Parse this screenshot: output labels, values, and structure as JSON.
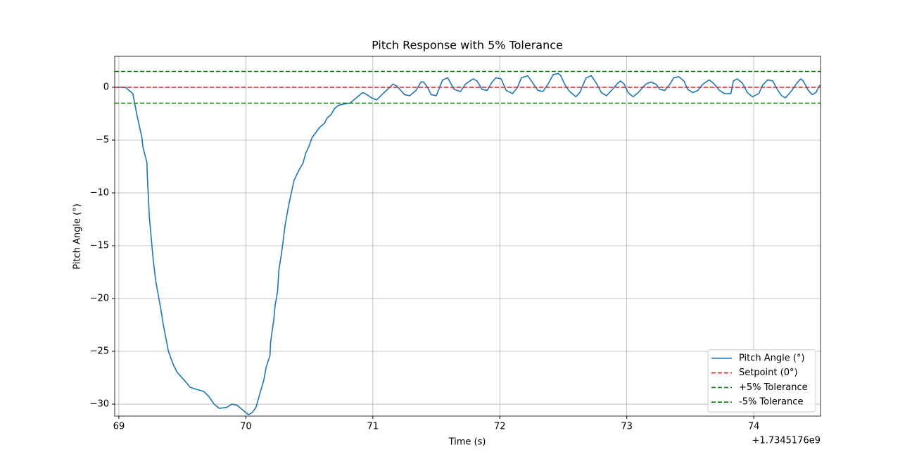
{
  "chart_data": {
    "type": "line",
    "title": "Pitch Response with 5% Tolerance",
    "xlabel": "Time (s)",
    "ylabel": "Pitch Angle (°)",
    "x_offset_label": "+1.7345176e9",
    "xlim": [
      68.967,
      74.526
    ],
    "ylim": [
      -31.13,
      2.93
    ],
    "xticks": [
      69,
      70,
      71,
      72,
      73,
      74
    ],
    "yticks": [
      {
        "value": -30,
        "label": "−30"
      },
      {
        "value": -25,
        "label": "−25"
      },
      {
        "value": -20,
        "label": "−20"
      },
      {
        "value": -15,
        "label": "−15"
      },
      {
        "value": -10,
        "label": "−10"
      },
      {
        "value": -5,
        "label": "−5"
      },
      0
    ],
    "grid": true,
    "legend": "lower right",
    "series": [
      {
        "name": "Pitch Angle (°)",
        "color": "#1f77b4",
        "style": "solid",
        "x": [
          68.98,
          69.05,
          69.11,
          69.14,
          69.18,
          69.19,
          69.22,
          69.225,
          69.24,
          69.27,
          69.29,
          69.33,
          69.35,
          69.39,
          69.43,
          69.46,
          69.52,
          69.56,
          69.61,
          69.67,
          69.71,
          69.75,
          69.79,
          69.85,
          69.89,
          69.93,
          69.98,
          70.02,
          70.05,
          70.08,
          70.11,
          70.14,
          70.16,
          70.19,
          70.195,
          70.22,
          70.23,
          70.25,
          70.26,
          70.28,
          70.31,
          70.34,
          70.38,
          70.42,
          70.45,
          70.47,
          70.5,
          70.52,
          70.55,
          70.58,
          70.62,
          70.64,
          70.67,
          70.7,
          70.73,
          70.77,
          70.82,
          70.86,
          70.92,
          70.94,
          70.99,
          71.03,
          71.08,
          71.16,
          71.19,
          71.25,
          71.29,
          71.34,
          71.38,
          71.4,
          71.43,
          71.46,
          71.5,
          71.55,
          71.59,
          71.64,
          71.69,
          71.73,
          71.79,
          71.82,
          71.86,
          71.9,
          71.94,
          71.97,
          72.01,
          72.05,
          72.1,
          72.14,
          72.17,
          72.22,
          72.26,
          72.3,
          72.34,
          72.38,
          72.42,
          72.46,
          72.48,
          72.51,
          72.55,
          72.6,
          72.63,
          72.68,
          72.72,
          72.76,
          72.8,
          72.84,
          72.88,
          72.93,
          72.95,
          72.98,
          73.01,
          73.05,
          73.09,
          73.15,
          73.19,
          73.23,
          73.26,
          73.3,
          73.34,
          73.37,
          73.41,
          73.45,
          73.48,
          73.52,
          73.56,
          73.6,
          73.65,
          73.69,
          73.73,
          73.77,
          73.82,
          73.84,
          73.87,
          73.91,
          73.95,
          73.99,
          74.04,
          74.07,
          74.11,
          74.15,
          74.19,
          74.22,
          74.25,
          74.3,
          74.34,
          74.37,
          74.39,
          74.43,
          74.46,
          74.49,
          74.52
        ],
        "values": [
          0,
          0,
          -0.6,
          -2.5,
          -4.7,
          -5.7,
          -7.1,
          -8.7,
          -12.3,
          -16.3,
          -18.3,
          -21,
          -22.5,
          -25,
          -26.3,
          -27,
          -27.8,
          -28.4,
          -28.6,
          -28.8,
          -29.3,
          -30,
          -30.4,
          -30.3,
          -30,
          -30.1,
          -30.6,
          -31,
          -30.8,
          -30.3,
          -29,
          -27.8,
          -26.5,
          -25.4,
          -24.1,
          -22,
          -20.7,
          -19.3,
          -17.3,
          -15.8,
          -13,
          -11,
          -8.8,
          -7.8,
          -7.2,
          -6.3,
          -5.5,
          -4.8,
          -4.3,
          -3.8,
          -3.4,
          -2.9,
          -2.6,
          -2,
          -1.7,
          -1.6,
          -1.5,
          -1.1,
          -0.5,
          -0.6,
          -1,
          -1.2,
          -0.6,
          0.3,
          0.1,
          -0.7,
          -0.8,
          -0.3,
          0.5,
          0.5,
          0,
          -0.7,
          -0.8,
          0.7,
          0.9,
          -0.2,
          -0.4,
          0.3,
          0.8,
          0.6,
          -0.2,
          -0.3,
          0.5,
          0.9,
          0.8,
          -0.3,
          -0.6,
          0,
          0.9,
          1.1,
          0.4,
          -0.3,
          -0.4,
          0.3,
          1.2,
          1.3,
          1.1,
          0.3,
          -0.4,
          -0.9,
          -0.5,
          0.9,
          1.1,
          0.4,
          -0.5,
          -0.8,
          -0.3,
          0.4,
          0.6,
          0.3,
          -0.5,
          -0.9,
          -0.5,
          0.3,
          0.5,
          0.3,
          -0.2,
          -0.3,
          0.3,
          0.9,
          1.0,
          0.6,
          -0.2,
          -0.5,
          -0.3,
          0.3,
          0.7,
          0.3,
          -0.3,
          -0.6,
          -0.6,
          0.6,
          0.8,
          0.4,
          -0.5,
          -0.9,
          -0.6,
          0.2,
          0.7,
          0.6,
          -0.3,
          -0.8,
          -1.0,
          -0.3,
          0.4,
          0.8,
          0.6,
          -0.3,
          -0.7,
          -0.5,
          0.2
        ]
      },
      {
        "name": "Setpoint (0°)",
        "color": "#d62728",
        "style": "dashed",
        "hline": 0
      },
      {
        "name": "+5% Tolerance",
        "color": "#008000",
        "style": "dashed",
        "hline": 1.5
      },
      {
        "name": "-5% Tolerance",
        "color": "#008000",
        "style": "dashed",
        "hline": -1.5
      }
    ]
  }
}
